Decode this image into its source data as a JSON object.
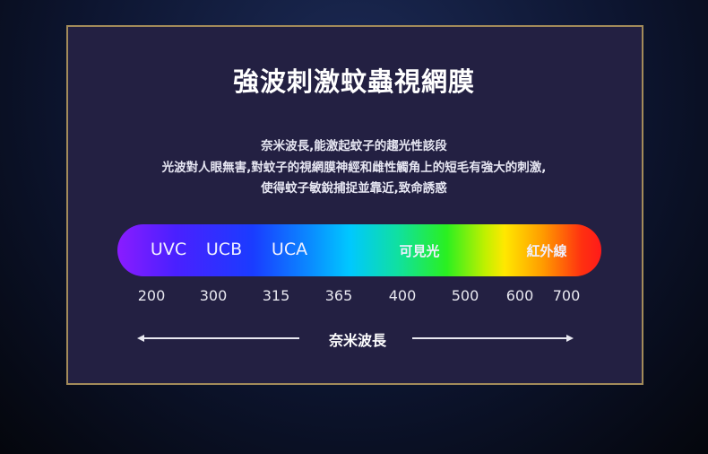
{
  "title": "強波刺激蚊蟲視網膜",
  "description": [
    "奈米波長,能激起蚊子的趨光性該段",
    "光波對人眼無害,對蚊子的視網膜神經和雌性觸角上的短毛有強大的刺激,",
    "使得蚊子敏銳捕捉並靠近,致命誘惑"
  ],
  "spectrum": {
    "bands": [
      "UVC",
      "UCB",
      "UCA",
      "可見光",
      "紅外線"
    ],
    "wavelengths": [
      "200",
      "300",
      "315",
      "365",
      "400",
      "500",
      "600",
      "700"
    ],
    "axis_label": "奈米波長",
    "colors": [
      "#8a1cff",
      "#1a3cff",
      "#00c8ff",
      "#2af020",
      "#ffe800",
      "#ff1a1a"
    ]
  },
  "colors": {
    "panel": "#232042",
    "border": "#a38b5a"
  }
}
